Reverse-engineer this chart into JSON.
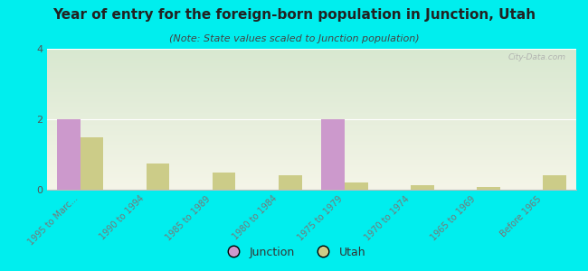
{
  "title": "Year of entry for the foreign-born population in Junction, Utah",
  "subtitle": "(Note: State values scaled to Junction population)",
  "categories": [
    "1995 to Marc...",
    "1990 to 1994",
    "1985 to 1989",
    "1980 to 1984",
    "1975 to 1979",
    "1970 to 1974",
    "1965 to 1969",
    "Before 1965"
  ],
  "junction_values": [
    2,
    0,
    0,
    0,
    2,
    0,
    0,
    0
  ],
  "utah_values": [
    1.5,
    0.75,
    0.5,
    0.4,
    0.2,
    0.12,
    0.07,
    0.4
  ],
  "junction_color": "#cc99cc",
  "utah_color": "#cccc88",
  "background_color": "#00eeee",
  "grad_top": "#d8e8d0",
  "grad_bottom": "#f5f5e8",
  "ylim": [
    0,
    4
  ],
  "yticks": [
    0,
    2,
    4
  ],
  "bar_width": 0.35,
  "title_fontsize": 11,
  "subtitle_fontsize": 8,
  "tick_label_fontsize": 7,
  "legend_fontsize": 9
}
